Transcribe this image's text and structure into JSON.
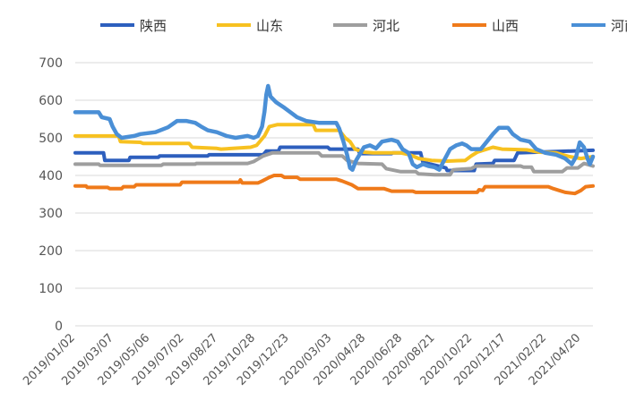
{
  "chart_data": {
    "type": "line",
    "title": "",
    "xlabel": "",
    "ylabel": "",
    "ylim": [
      0,
      700
    ],
    "yticks": [
      0,
      100,
      200,
      300,
      400,
      500,
      600,
      700
    ],
    "grid": true,
    "legend": "top",
    "xlim": [
      "2019-01-02",
      "2021-05-10"
    ],
    "x_tick_labels": [
      "2019/01/02",
      "2019/03/07",
      "2019/05/06",
      "2019/07/02",
      "2019/08/27",
      "2019/10/28",
      "2019/12/23",
      "2020/03/03",
      "2020/04/28",
      "2020/06/28",
      "2020/08/21",
      "2020/10/22",
      "2020/12/17",
      "2021/02/22",
      "2021/04/20"
    ],
    "x_tick_dates": [
      "2019-01-02",
      "2019-03-07",
      "2019-05-06",
      "2019-07-02",
      "2019-08-27",
      "2019-10-28",
      "2019-12-23",
      "2020-03-03",
      "2020-04-28",
      "2020-06-28",
      "2020-08-21",
      "2020-10-22",
      "2020-12-17",
      "2021-02-22",
      "2021-04-20"
    ],
    "series": [
      {
        "name": "陕西",
        "color": "#2d5fbe",
        "points": [
          [
            "2019-01-02",
            460
          ],
          [
            "2019-02-18",
            460
          ],
          [
            "2019-02-20",
            440
          ],
          [
            "2019-04-01",
            440
          ],
          [
            "2019-04-03",
            448
          ],
          [
            "2019-05-20",
            448
          ],
          [
            "2019-05-22",
            452
          ],
          [
            "2019-08-10",
            452
          ],
          [
            "2019-08-12",
            455
          ],
          [
            "2019-11-10",
            455
          ],
          [
            "2019-11-15",
            465
          ],
          [
            "2019-12-05",
            465
          ],
          [
            "2019-12-08",
            475
          ],
          [
            "2020-02-25",
            475
          ],
          [
            "2020-02-28",
            470
          ],
          [
            "2020-04-15",
            470
          ],
          [
            "2020-04-18",
            458
          ],
          [
            "2020-06-10",
            458
          ],
          [
            "2020-06-12",
            460
          ],
          [
            "2020-07-28",
            460
          ],
          [
            "2020-08-01",
            435
          ],
          [
            "2020-09-08",
            420
          ],
          [
            "2020-09-10",
            413
          ],
          [
            "2020-10-25",
            413
          ],
          [
            "2020-10-28",
            430
          ],
          [
            "2020-11-25",
            432
          ],
          [
            "2020-11-28",
            440
          ],
          [
            "2020-12-30",
            440
          ],
          [
            "2021-01-05",
            460
          ],
          [
            "2021-05-10",
            467
          ]
        ]
      },
      {
        "name": "山东",
        "color": "#f7c120",
        "points": [
          [
            "2019-01-02",
            505
          ],
          [
            "2019-03-15",
            505
          ],
          [
            "2019-03-18",
            490
          ],
          [
            "2019-04-20",
            488
          ],
          [
            "2019-04-25",
            485
          ],
          [
            "2019-07-10",
            485
          ],
          [
            "2019-07-15",
            475
          ],
          [
            "2019-08-25",
            472
          ],
          [
            "2019-09-01",
            470
          ],
          [
            "2019-10-20",
            475
          ],
          [
            "2019-10-30",
            480
          ],
          [
            "2019-11-12",
            505
          ],
          [
            "2019-11-20",
            530
          ],
          [
            "2019-12-03",
            535
          ],
          [
            "2020-02-01",
            535
          ],
          [
            "2020-02-05",
            520
          ],
          [
            "2020-03-15",
            520
          ],
          [
            "2020-03-25",
            500
          ],
          [
            "2020-04-02",
            490
          ],
          [
            "2020-04-10",
            470
          ],
          [
            "2020-04-25",
            462
          ],
          [
            "2020-05-10",
            460
          ],
          [
            "2020-06-25",
            460
          ],
          [
            "2020-07-10",
            455
          ],
          [
            "2020-07-25",
            445
          ],
          [
            "2020-08-15",
            440
          ],
          [
            "2020-09-10",
            438
          ],
          [
            "2020-10-10",
            440
          ],
          [
            "2020-10-20",
            452
          ],
          [
            "2020-10-30",
            462
          ],
          [
            "2020-11-15",
            470
          ],
          [
            "2020-11-25",
            475
          ],
          [
            "2020-12-10",
            470
          ],
          [
            "2021-01-20",
            468
          ],
          [
            "2021-02-10",
            462
          ],
          [
            "2021-03-10",
            460
          ],
          [
            "2021-04-01",
            450
          ],
          [
            "2021-04-20",
            445
          ],
          [
            "2021-05-10",
            450
          ]
        ]
      },
      {
        "name": "河北",
        "color": "#9e9e9e",
        "points": [
          [
            "2019-01-02",
            430
          ],
          [
            "2019-02-10",
            430
          ],
          [
            "2019-02-12",
            427
          ],
          [
            "2019-05-25",
            427
          ],
          [
            "2019-05-28",
            430
          ],
          [
            "2019-07-20",
            430
          ],
          [
            "2019-07-22",
            432
          ],
          [
            "2019-10-15",
            432
          ],
          [
            "2019-10-25",
            437
          ],
          [
            "2019-11-10",
            452
          ],
          [
            "2019-11-25",
            460
          ],
          [
            "2020-02-10",
            460
          ],
          [
            "2020-02-15",
            452
          ],
          [
            "2020-03-20",
            452
          ],
          [
            "2020-03-28",
            440
          ],
          [
            "2020-04-15",
            432
          ],
          [
            "2020-05-25",
            430
          ],
          [
            "2020-06-01",
            418
          ],
          [
            "2020-06-25",
            410
          ],
          [
            "2020-07-20",
            410
          ],
          [
            "2020-07-25",
            404
          ],
          [
            "2020-08-20",
            402
          ],
          [
            "2020-09-15",
            402
          ],
          [
            "2020-09-20",
            415
          ],
          [
            "2020-10-20",
            418
          ],
          [
            "2020-10-28",
            425
          ],
          [
            "2021-01-10",
            425
          ],
          [
            "2021-01-15",
            422
          ],
          [
            "2021-01-28",
            422
          ],
          [
            "2021-02-01",
            410
          ],
          [
            "2021-03-20",
            410
          ],
          [
            "2021-03-28",
            420
          ],
          [
            "2021-04-15",
            420
          ],
          [
            "2021-04-25",
            432
          ],
          [
            "2021-05-10",
            425
          ]
        ]
      },
      {
        "name": "山西",
        "color": "#ef7a1a",
        "points": [
          [
            "2019-01-02",
            372
          ],
          [
            "2019-01-20",
            372
          ],
          [
            "2019-01-22",
            368
          ],
          [
            "2019-02-25",
            368
          ],
          [
            "2019-02-28",
            365
          ],
          [
            "2019-03-20",
            365
          ],
          [
            "2019-03-23",
            370
          ],
          [
            "2019-04-10",
            370
          ],
          [
            "2019-04-13",
            375
          ],
          [
            "2019-06-25",
            375
          ],
          [
            "2019-06-28",
            382
          ],
          [
            "2019-10-01",
            382
          ],
          [
            "2019-10-03",
            388
          ],
          [
            "2019-10-06",
            380
          ],
          [
            "2019-11-01",
            380
          ],
          [
            "2019-11-08",
            385
          ],
          [
            "2019-11-20",
            395
          ],
          [
            "2019-11-28",
            400
          ],
          [
            "2019-12-10",
            400
          ],
          [
            "2019-12-15",
            395
          ],
          [
            "2020-01-05",
            395
          ],
          [
            "2020-01-10",
            390
          ],
          [
            "2020-03-10",
            390
          ],
          [
            "2020-03-20",
            385
          ],
          [
            "2020-04-05",
            375
          ],
          [
            "2020-04-15",
            365
          ],
          [
            "2020-05-20",
            365
          ],
          [
            "2020-05-28",
            365
          ],
          [
            "2020-06-10",
            358
          ],
          [
            "2020-07-15",
            358
          ],
          [
            "2020-07-20",
            355
          ],
          [
            "2020-10-30",
            355
          ],
          [
            "2020-11-02",
            362
          ],
          [
            "2020-11-08",
            360
          ],
          [
            "2020-11-12",
            370
          ],
          [
            "2021-02-25",
            370
          ],
          [
            "2021-03-05",
            365
          ],
          [
            "2021-03-15",
            360
          ],
          [
            "2021-03-25",
            355
          ],
          [
            "2021-04-10",
            352
          ],
          [
            "2021-04-20",
            360
          ],
          [
            "2021-04-28",
            370
          ],
          [
            "2021-05-10",
            372
          ]
        ]
      },
      {
        "name": "河南",
        "color": "#4a8fd6",
        "points": [
          [
            "2019-01-02",
            568
          ],
          [
            "2019-02-10",
            568
          ],
          [
            "2019-02-15",
            555
          ],
          [
            "2019-02-28",
            550
          ],
          [
            "2019-03-05",
            530
          ],
          [
            "2019-03-12",
            510
          ],
          [
            "2019-03-20",
            500
          ],
          [
            "2019-04-10",
            505
          ],
          [
            "2019-04-20",
            510
          ],
          [
            "2019-05-15",
            515
          ],
          [
            "2019-06-05",
            528
          ],
          [
            "2019-06-20",
            545
          ],
          [
            "2019-07-05",
            545
          ],
          [
            "2019-07-20",
            540
          ],
          [
            "2019-07-30",
            530
          ],
          [
            "2019-08-10",
            520
          ],
          [
            "2019-08-25",
            515
          ],
          [
            "2019-09-10",
            505
          ],
          [
            "2019-09-25",
            500
          ],
          [
            "2019-10-15",
            505
          ],
          [
            "2019-10-25",
            500
          ],
          [
            "2019-11-01",
            505
          ],
          [
            "2019-11-08",
            530
          ],
          [
            "2019-11-12",
            570
          ],
          [
            "2019-11-15",
            615
          ],
          [
            "2019-11-18",
            638
          ],
          [
            "2019-11-22",
            610
          ],
          [
            "2019-12-01",
            595
          ],
          [
            "2019-12-15",
            580
          ],
          [
            "2020-01-05",
            555
          ],
          [
            "2020-01-20",
            545
          ],
          [
            "2020-02-10",
            540
          ],
          [
            "2020-03-10",
            540
          ],
          [
            "2020-03-15",
            525
          ],
          [
            "2020-03-22",
            490
          ],
          [
            "2020-03-28",
            455
          ],
          [
            "2020-04-02",
            420
          ],
          [
            "2020-04-06",
            415
          ],
          [
            "2020-04-12",
            440
          ],
          [
            "2020-04-25",
            475
          ],
          [
            "2020-05-05",
            480
          ],
          [
            "2020-05-15",
            472
          ],
          [
            "2020-05-25",
            490
          ],
          [
            "2020-06-10",
            495
          ],
          [
            "2020-06-20",
            490
          ],
          [
            "2020-06-28",
            470
          ],
          [
            "2020-07-08",
            460
          ],
          [
            "2020-07-15",
            430
          ],
          [
            "2020-07-22",
            422
          ],
          [
            "2020-08-01",
            430
          ],
          [
            "2020-08-10",
            425
          ],
          [
            "2020-08-20",
            422
          ],
          [
            "2020-08-28",
            415
          ],
          [
            "2020-09-05",
            440
          ],
          [
            "2020-09-15",
            470
          ],
          [
            "2020-09-25",
            480
          ],
          [
            "2020-10-05",
            485
          ],
          [
            "2020-10-12",
            480
          ],
          [
            "2020-10-20",
            470
          ],
          [
            "2020-11-05",
            470
          ],
          [
            "2020-11-15",
            490
          ],
          [
            "2020-11-25",
            510
          ],
          [
            "2020-12-05",
            527
          ],
          [
            "2020-12-20",
            527
          ],
          [
            "2020-12-28",
            510
          ],
          [
            "2021-01-10",
            495
          ],
          [
            "2021-01-25",
            490
          ],
          [
            "2021-02-05",
            470
          ],
          [
            "2021-02-20",
            460
          ],
          [
            "2021-03-10",
            455
          ],
          [
            "2021-03-25",
            445
          ],
          [
            "2021-04-05",
            430
          ],
          [
            "2021-04-12",
            450
          ],
          [
            "2021-04-18",
            488
          ],
          [
            "2021-04-25",
            475
          ],
          [
            "2021-05-01",
            445
          ],
          [
            "2021-05-05",
            430
          ],
          [
            "2021-05-10",
            450
          ]
        ]
      }
    ]
  }
}
